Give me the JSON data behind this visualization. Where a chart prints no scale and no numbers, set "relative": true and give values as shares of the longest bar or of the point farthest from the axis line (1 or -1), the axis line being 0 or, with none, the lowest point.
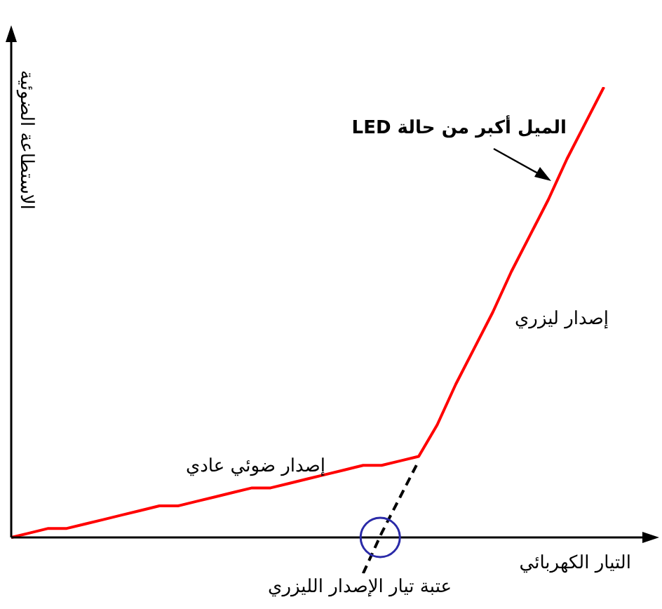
{
  "chart_data": {
    "type": "line",
    "relative": true,
    "xlabel": "التيار الكهربائي",
    "ylabel": "الاستطاعة الضوئية",
    "marker": "none",
    "categories": [
      null,
      null,
      null,
      null,
      null,
      null,
      null,
      null,
      null,
      null,
      null,
      null,
      null,
      null,
      null,
      null,
      null,
      null,
      null,
      null,
      null,
      null,
      null,
      null,
      null,
      null,
      null,
      null,
      null,
      null,
      null,
      null,
      null,
      null,
      null
    ],
    "series": [
      {
        "color": "#ff0000",
        "values": [
          0,
          0.01,
          0.02,
          0.02,
          0.03,
          0.04,
          0.05,
          0.06,
          0.07,
          0.07,
          0.08,
          0.09,
          0.1,
          0.11,
          0.11,
          0.12,
          0.13,
          0.14,
          0.15,
          0.16,
          0.16,
          0.17,
          0.18,
          0.25,
          0.34,
          0.42,
          0.5,
          0.59,
          0.67,
          0.75,
          0.84,
          0.92,
          1,
          null,
          null
        ]
      },
      {
        "color": "#000000",
        "line_style": "dashed",
        "values": [
          null,
          null,
          null,
          null,
          null,
          null,
          null,
          null,
          null,
          null,
          null,
          null,
          null,
          null,
          null,
          null,
          null,
          null,
          null,
          -0.08,
          0.01,
          0.09,
          0.17,
          null,
          null,
          null,
          null,
          null,
          null,
          null,
          null,
          null,
          null,
          null,
          null
        ]
      }
    ],
    "annotations": [
      "الميل أكبر من حالة LED",
      "إصدار ليزري",
      "إصدار ضوئي عادي",
      "عتبة تيار الإصدار الليزري"
    ]
  }
}
